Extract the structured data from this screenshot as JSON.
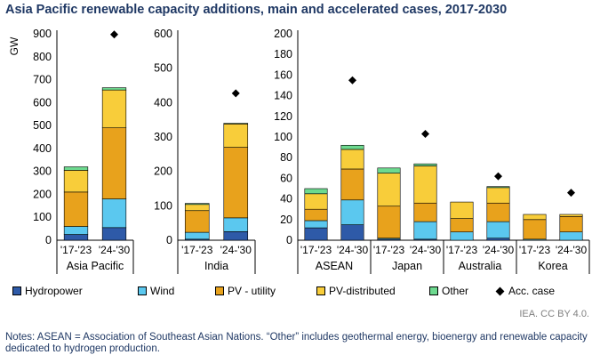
{
  "chart_data": {
    "type": "bar",
    "stacked": true,
    "title": "Asia Pacific renewable capacity additions, main and accelerated cases, 2017-2030",
    "ylabel": "GW",
    "series": [
      {
        "name": "Hydropower",
        "color": "#2e5aa8"
      },
      {
        "name": "Wind",
        "color": "#5bc8ef"
      },
      {
        "name": "PV - utility",
        "color": "#e8a21c"
      },
      {
        "name": "PV-distributed",
        "color": "#f8cd3a"
      },
      {
        "name": "Other",
        "color": "#6dd98f"
      },
      {
        "name": "Acc. case",
        "color": "#000000",
        "marker": "diamond"
      }
    ],
    "panels": [
      {
        "id": "asia-pacific",
        "ylim": [
          0,
          900
        ],
        "yticks": [
          0,
          100,
          200,
          300,
          400,
          500,
          600,
          700,
          800,
          900
        ],
        "groups": [
          {
            "label": "Asia Pacific",
            "bars": [
              {
                "category": "'17-'23",
                "values": [
                  25,
                  35,
                  150,
                  95,
                  15
                ],
                "acc_case": null
              },
              {
                "category": "'24-'30",
                "values": [
                  55,
                  125,
                  310,
                  165,
                  10
                ],
                "acc_case": 897
              }
            ]
          }
        ]
      },
      {
        "id": "india",
        "ylim": [
          0,
          600
        ],
        "yticks": [
          0,
          100,
          200,
          300,
          400,
          500,
          600
        ],
        "groups": [
          {
            "label": "India",
            "bars": [
              {
                "category": "'17-'23",
                "values": [
                  3,
                  20,
                  63,
                  18,
                  3
                ],
                "acc_case": null
              },
              {
                "category": "'24-'30",
                "values": [
                  25,
                  40,
                  205,
                  68,
                  2
                ],
                "acc_case": 427
              }
            ]
          }
        ]
      },
      {
        "id": "sea",
        "ylim": [
          0,
          200
        ],
        "yticks": [
          0,
          20,
          40,
          60,
          80,
          100,
          120,
          140,
          160,
          180,
          200
        ],
        "groups": [
          {
            "label": "ASEAN",
            "bars": [
              {
                "category": "'17-'23",
                "values": [
                  12,
                  7,
                  11,
                  15,
                  5
                ],
                "acc_case": null
              },
              {
                "category": "'24-'30",
                "values": [
                  15,
                  24,
                  30,
                  19,
                  4
                ],
                "acc_case": 155
              }
            ]
          },
          {
            "label": "Japan",
            "bars": [
              {
                "category": "'17-'23",
                "values": [
                  1,
                  1,
                  31,
                  32,
                  5
                ],
                "acc_case": null
              },
              {
                "category": "'24-'30",
                "values": [
                  1,
                  17,
                  18,
                  36,
                  2
                ],
                "acc_case": 103
              }
            ]
          },
          {
            "label": "Australia",
            "bars": [
              {
                "category": "'17-'23",
                "values": [
                  0,
                  8,
                  13,
                  16,
                  0
                ],
                "acc_case": null
              },
              {
                "category": "'24-'30",
                "values": [
                  2,
                  16,
                  18,
                  15,
                  1
                ],
                "acc_case": 62
              }
            ]
          },
          {
            "label": "Korea",
            "bars": [
              {
                "category": "'17-'23",
                "values": [
                  0,
                  1,
                  19,
                  5,
                  0
                ],
                "acc_case": null
              },
              {
                "category": "'24-'30",
                "values": [
                  0,
                  8,
                  15,
                  2,
                  0
                ],
                "acc_case": 46
              }
            ]
          }
        ]
      }
    ]
  },
  "credit": "IEA. CC BY 4.0.",
  "notes": "Notes: ASEAN = Association of Southeast Asian Nations. “Other” includes geothermal energy, bioenergy and renewable capacity dedicated to hydrogen production."
}
